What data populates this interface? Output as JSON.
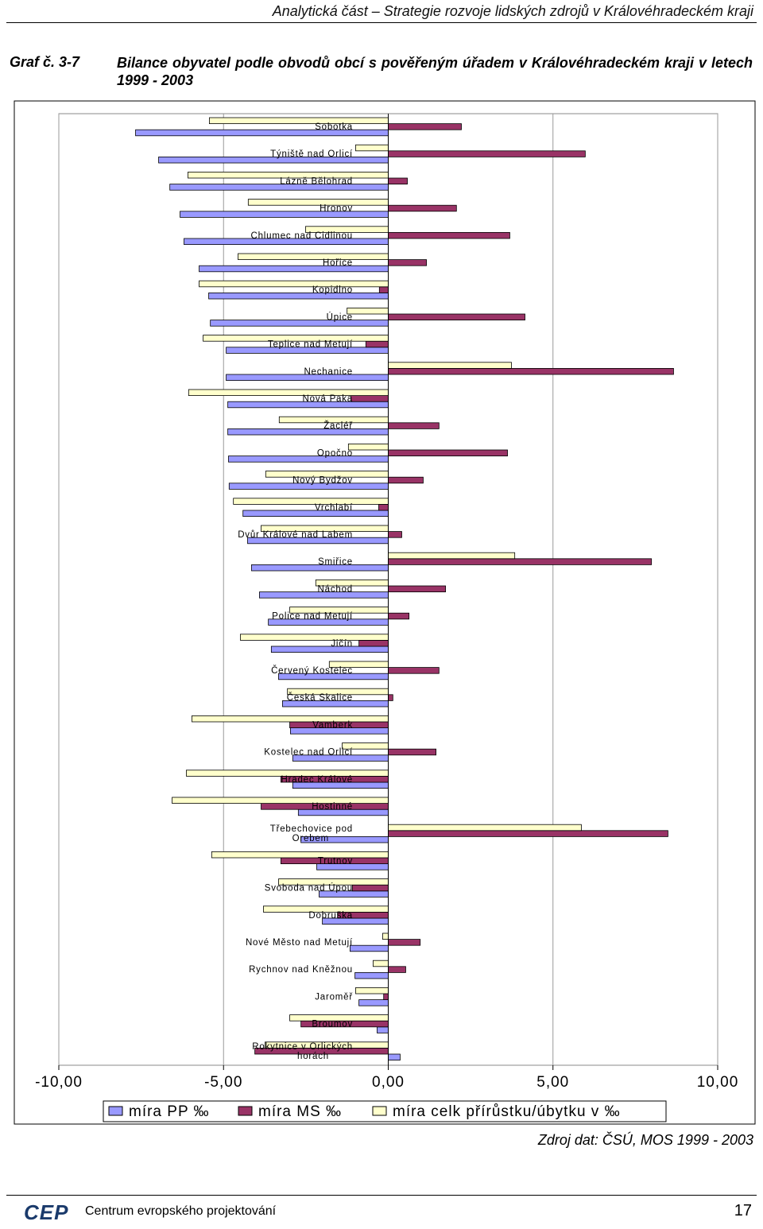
{
  "header": {
    "running_title": "Analytická část – Strategie rozvoje lidských zdrojů v Královéhradeckém kraji"
  },
  "figure": {
    "label": "Graf č. 3-7",
    "title": "Bilance obyvatel podle obvodů obcí s pověřeným úřadem v Královéhradeckém kraji v letech 1999 - 2003"
  },
  "chart_data": {
    "type": "bar",
    "orientation": "horizontal",
    "categories": [
      "Sobotka",
      "Týniště nad Orlicí",
      "Lázně Bělohrad",
      "Hronov",
      "Chlumec nad Cidlinou",
      "Hořice",
      "Kopidlno",
      "Úpice",
      "Teplice nad Metují",
      "Nechanice",
      "Nová Paka",
      "Žacléř",
      "Opočno",
      "Nový Bydžov",
      "Vrchlabí",
      "Dvůr Králové nad Labem",
      "Smiřice",
      "Náchod",
      "Police nad Metují",
      "Jičín",
      "Červený Kostelec",
      "Česká Skalice",
      "Vamberk",
      "Kostelec nad Orlicí",
      "Hradec Králové",
      "Hostinné",
      "Třebechovice pod Orebem",
      "Trutnov",
      "Svoboda nad Úpou",
      "Dobruška",
      "Nové Město nad Metují",
      "Rychnov nad Kněžnou",
      "Jaroměř",
      "Broumov",
      "Rokytnice v Orlických horách"
    ],
    "series": [
      {
        "name": "míra PP ‰",
        "color": "#9999ff",
        "values": [
          -7.67,
          -6.97,
          -6.63,
          -6.32,
          -6.2,
          -5.74,
          -5.45,
          -5.4,
          -4.92,
          -4.92,
          -4.87,
          -4.87,
          -4.85,
          -4.83,
          -4.41,
          -4.27,
          -4.15,
          -3.91,
          -3.64,
          -3.55,
          -3.33,
          -3.21,
          -2.97,
          -2.9,
          -2.9,
          -2.73,
          -2.65,
          -2.17,
          -2.1,
          -2.0,
          -1.16,
          -1.01,
          -0.89,
          -0.34,
          0.36
        ]
      },
      {
        "name": "míra MS ‰",
        "color": "#993366",
        "values": [
          2.22,
          5.98,
          0.58,
          2.07,
          3.69,
          1.16,
          -0.27,
          4.15,
          -0.68,
          8.66,
          -1.13,
          1.54,
          3.62,
          1.06,
          -0.29,
          0.41,
          7.99,
          1.74,
          0.63,
          -0.89,
          1.54,
          0.14,
          -2.99,
          1.45,
          -3.26,
          -3.86,
          8.49,
          -3.26,
          -1.09,
          -1.54,
          0.97,
          0.53,
          -0.14,
          -2.65,
          -4.05
        ]
      },
      {
        "name": "míra celk přírůstku/úbytku v ‰",
        "color": "#ffffcc",
        "values": [
          -5.43,
          -0.99,
          -6.08,
          -4.25,
          -2.51,
          -4.56,
          -5.74,
          -1.25,
          -5.62,
          3.74,
          -6.06,
          -3.31,
          -1.21,
          -3.72,
          -4.7,
          -3.86,
          3.84,
          -2.2,
          -2.99,
          -4.49,
          -1.79,
          -3.06,
          -5.96,
          -1.4,
          -6.13,
          -6.56,
          5.86,
          -5.36,
          -3.33,
          -3.79,
          -0.17,
          -0.46,
          -0.99,
          -2.99,
          -3.74
        ]
      }
    ],
    "xlim": [
      -10,
      10
    ],
    "xticks": [
      {
        "value": -10,
        "label": "-10,00"
      },
      {
        "value": -5,
        "label": "-5,00"
      },
      {
        "value": 0,
        "label": "0,00"
      },
      {
        "value": 5,
        "label": "5,00"
      },
      {
        "value": 10,
        "label": "10,00"
      }
    ],
    "grid": true,
    "legend": "bottom"
  },
  "source": "Zdroj dat: ČSÚ, MOS 1999 - 2003",
  "footer": {
    "logo": "CEP",
    "organization": "Centrum evropského projektování",
    "page": "17"
  }
}
